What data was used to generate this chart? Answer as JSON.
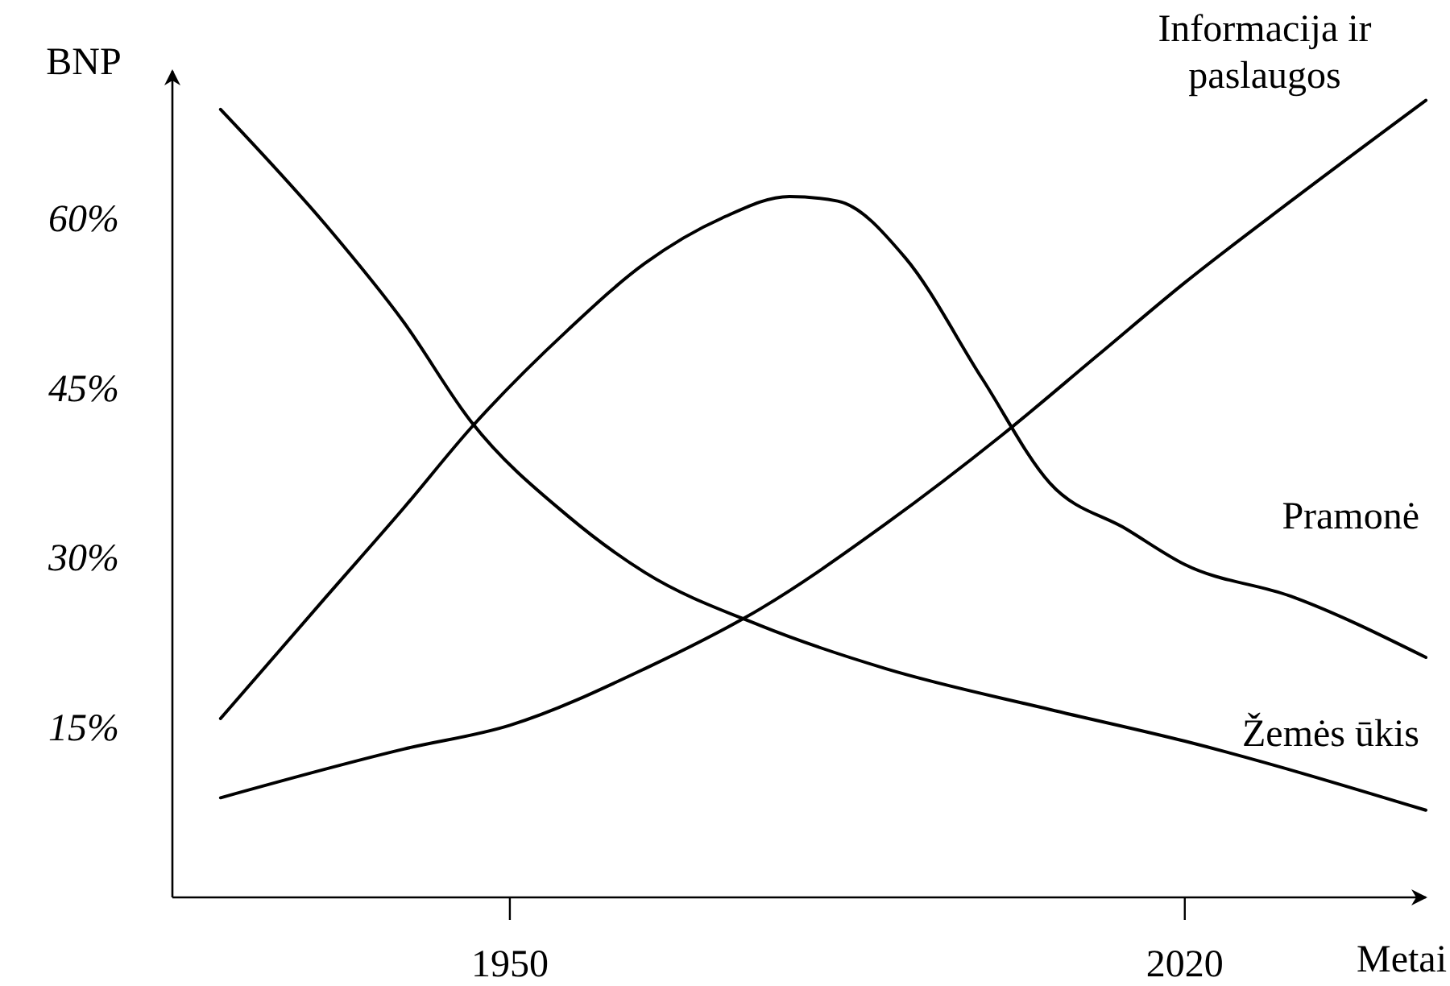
{
  "chart_data": {
    "type": "line",
    "xlabel": "Metai",
    "ylabel": "BNP",
    "xlim": [
      1915,
      2045
    ],
    "ylim": [
      0,
      73
    ],
    "xticks": [
      1950,
      2020
    ],
    "yticks": [
      {
        "value": 15,
        "label": "15%"
      },
      {
        "value": 30,
        "label": "30%"
      },
      {
        "value": 45,
        "label": "45%"
      },
      {
        "value": 60,
        "label": "60%"
      }
    ],
    "grid": false,
    "marker": "none",
    "line_style": "solid",
    "series": [
      {
        "name": "Žemės ūkis",
        "color": "#000000",
        "x": [
          1920,
          1931,
          1939,
          1946,
          1956,
          1964,
          1976,
          1989,
          2006,
          2020,
          2045
        ],
        "values": [
          69.6,
          59.3,
          50.8,
          42.0,
          33.7,
          28.7,
          24.0,
          20.2,
          16.6,
          13.8,
          7.7
        ]
      },
      {
        "name": "Pramonė",
        "color": "#000000",
        "x": [
          1920,
          1931,
          1939,
          1946,
          1956,
          1964,
          1972,
          1979,
          1984,
          1991,
          1999,
          2006,
          2014,
          2020,
          2031,
          2045
        ],
        "values": [
          15.8,
          26.6,
          34.4,
          41.5,
          50.1,
          56.0,
          60.0,
          61.9,
          61.5,
          56.5,
          45.8,
          36.6,
          32.5,
          29.4,
          26.6,
          21.2
        ]
      },
      {
        "name": "Informacija ir paslaugos",
        "color": "#000000",
        "x": [
          1920,
          1939,
          1950,
          1964,
          1976,
          1989,
          2001,
          2011,
          2020,
          2031,
          2045
        ],
        "values": [
          8.8,
          13.1,
          15.2,
          20.2,
          25.5,
          33.0,
          40.8,
          47.9,
          54.3,
          61.5,
          70.4
        ]
      }
    ]
  }
}
